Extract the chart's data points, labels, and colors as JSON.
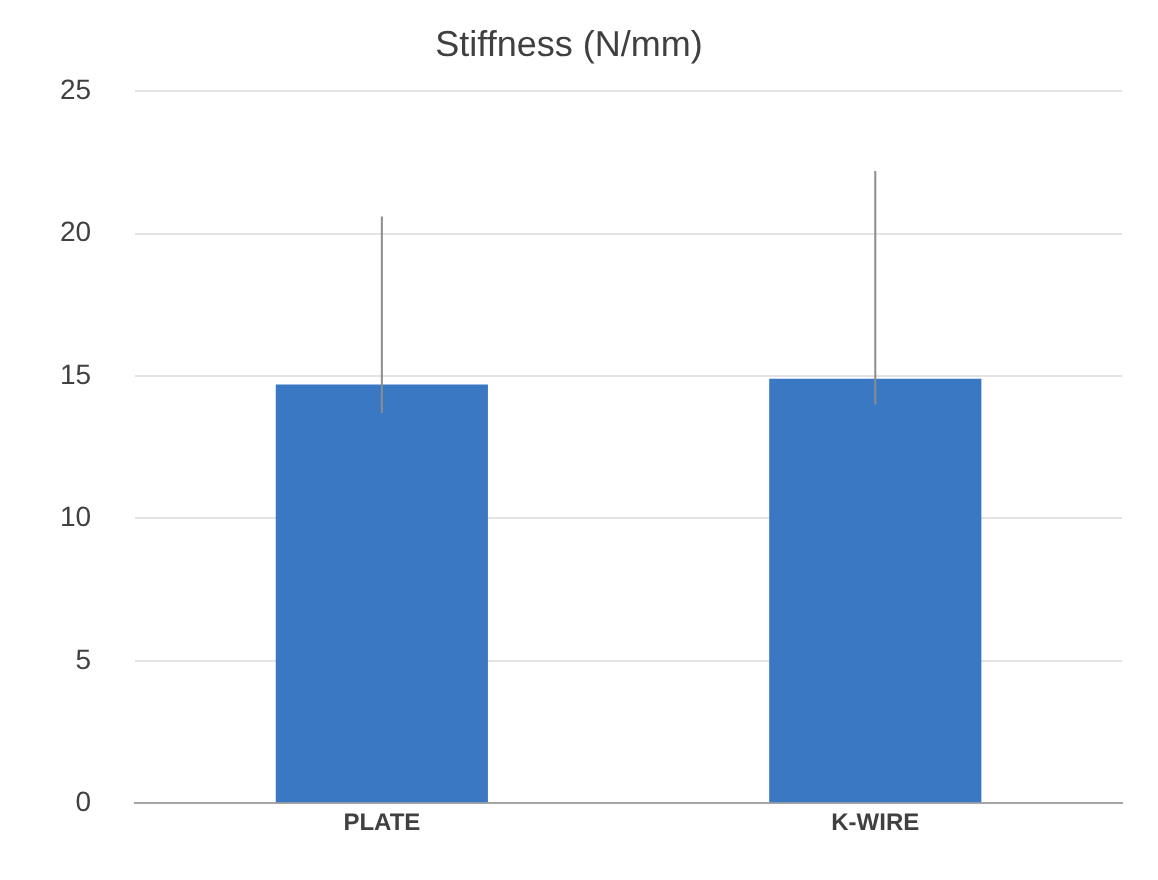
{
  "chart_data": {
    "type": "bar",
    "title": "Stiffness (N/mm)",
    "categories": [
      "PLATE",
      "K-WIRE"
    ],
    "values": [
      14.7,
      14.9
    ],
    "errors": [
      [
        13.7,
        20.6
      ],
      [
        14.0,
        22.2
      ]
    ],
    "color": "#3b78c3",
    "ylim": [
      0,
      25
    ],
    "yticks": [
      0,
      5,
      10,
      15,
      20,
      25
    ],
    "grid": "y"
  }
}
